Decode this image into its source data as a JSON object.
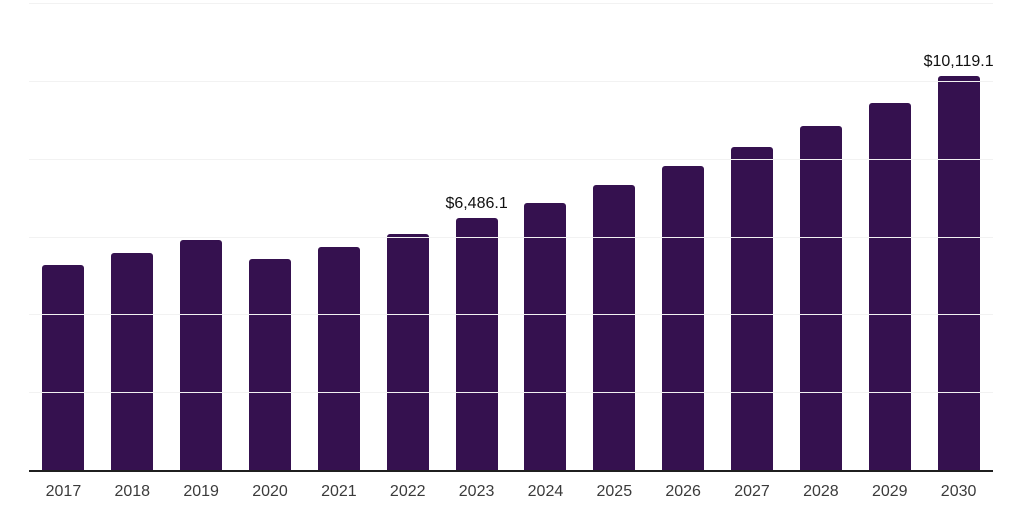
{
  "chart_data": {
    "type": "bar",
    "title": "",
    "categories": [
      "2017",
      "2018",
      "2019",
      "2020",
      "2021",
      "2022",
      "2023",
      "2024",
      "2025",
      "2026",
      "2027",
      "2028",
      "2029",
      "2030"
    ],
    "values": [
      5270,
      5580,
      5900,
      5430,
      5730,
      6060,
      6486.1,
      6860,
      7320,
      7810,
      8300,
      8850,
      9430,
      10119.1
    ],
    "point_labels": [
      "",
      "",
      "",
      "",
      "",
      "",
      "$6,486.1",
      "",
      "",
      "",
      "",
      "",
      "",
      "$10,119.1"
    ],
    "labeled_points": [
      {
        "category": "2023",
        "value": 6486.1,
        "label": "$6,486.1"
      },
      {
        "category": "2030",
        "value": 10119.1,
        "label": "$10,119.1"
      }
    ],
    "xlabel": "",
    "ylabel": "",
    "ylim": [
      0,
      12000
    ],
    "gridline_step": 2000,
    "grid": true,
    "legend_position": "none",
    "colors": {
      "bar": "#35114F",
      "axis_line": "#1f1f1f",
      "gridline": "#f2f2f2",
      "tick_label": "#3b3b3b",
      "value_label": "#111111",
      "background": "#ffffff"
    }
  }
}
